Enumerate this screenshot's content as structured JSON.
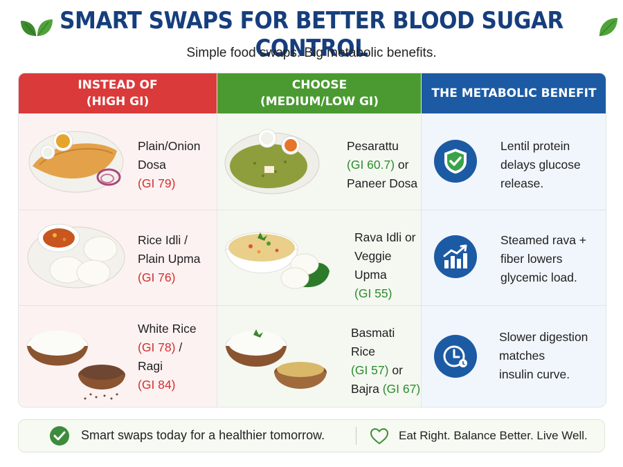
{
  "header": {
    "title": "SMART SWAPS FOR BETTER BLOOD SUGAR CONTROL",
    "subtitle": "Simple food swaps. Big metabolic benefits."
  },
  "columns": {
    "instead": {
      "line1": "INSTEAD OF",
      "line2": "(HIGH GI)"
    },
    "choose": {
      "line1": "CHOOSE",
      "line2": "(MEDIUM/LOW GI)"
    },
    "benefit": {
      "line1": "THE METABOLIC BENEFIT"
    }
  },
  "rows": [
    {
      "instead": {
        "l1": "Plain/Onion",
        "l2": "Dosa",
        "gi": "(GI 79)"
      },
      "choose": {
        "l1": "Pesarattu",
        "gi": "(GI 60.7)",
        "gi_suffix": " or",
        "l3": "Paneer Dosa"
      },
      "benefit": {
        "l1": "Lentil protein",
        "l2": "delays glucose",
        "l3": "release.",
        "icon": "shield-check-icon"
      }
    },
    {
      "instead": {
        "l1": "Rice Idli /",
        "l2": "Plain Upma",
        "gi": "(GI 76)"
      },
      "choose": {
        "l1": "Rava Idli or",
        "l2": "Veggie Upma",
        "gi": "(GI 55)"
      },
      "benefit": {
        "l1": "Steamed rava +",
        "l2": "fiber lowers",
        "l3": "glycemic load.",
        "icon": "bar-chart-trend-icon"
      }
    },
    {
      "instead": {
        "l1": "White Rice",
        "gi1": "(GI 78)",
        "gi1_suffix": " /",
        "l3": "Ragi",
        "gi2": "(GI 84)"
      },
      "choose": {
        "l1": "Basmati Rice",
        "gi1": "(GI 57)",
        "gi1_suffix": " or",
        "l3": "Bajra ",
        "gi2": "(GI 67)"
      },
      "benefit": {
        "l1": "Slower digestion",
        "l2": "matches",
        "l3": "insulin curve.",
        "icon": "clock-icon"
      }
    }
  ],
  "footer": {
    "left": "Smart swaps today for a healthier tomorrow.",
    "right": "Eat Right. Balance Better. Live Well."
  },
  "colors": {
    "title": "#163e7d",
    "high_header": "#db3a3a",
    "low_header": "#4a9a31",
    "benefit_header": "#1c5aa4",
    "gi_high": "#d32f2f",
    "gi_low": "#2e8b2e"
  }
}
